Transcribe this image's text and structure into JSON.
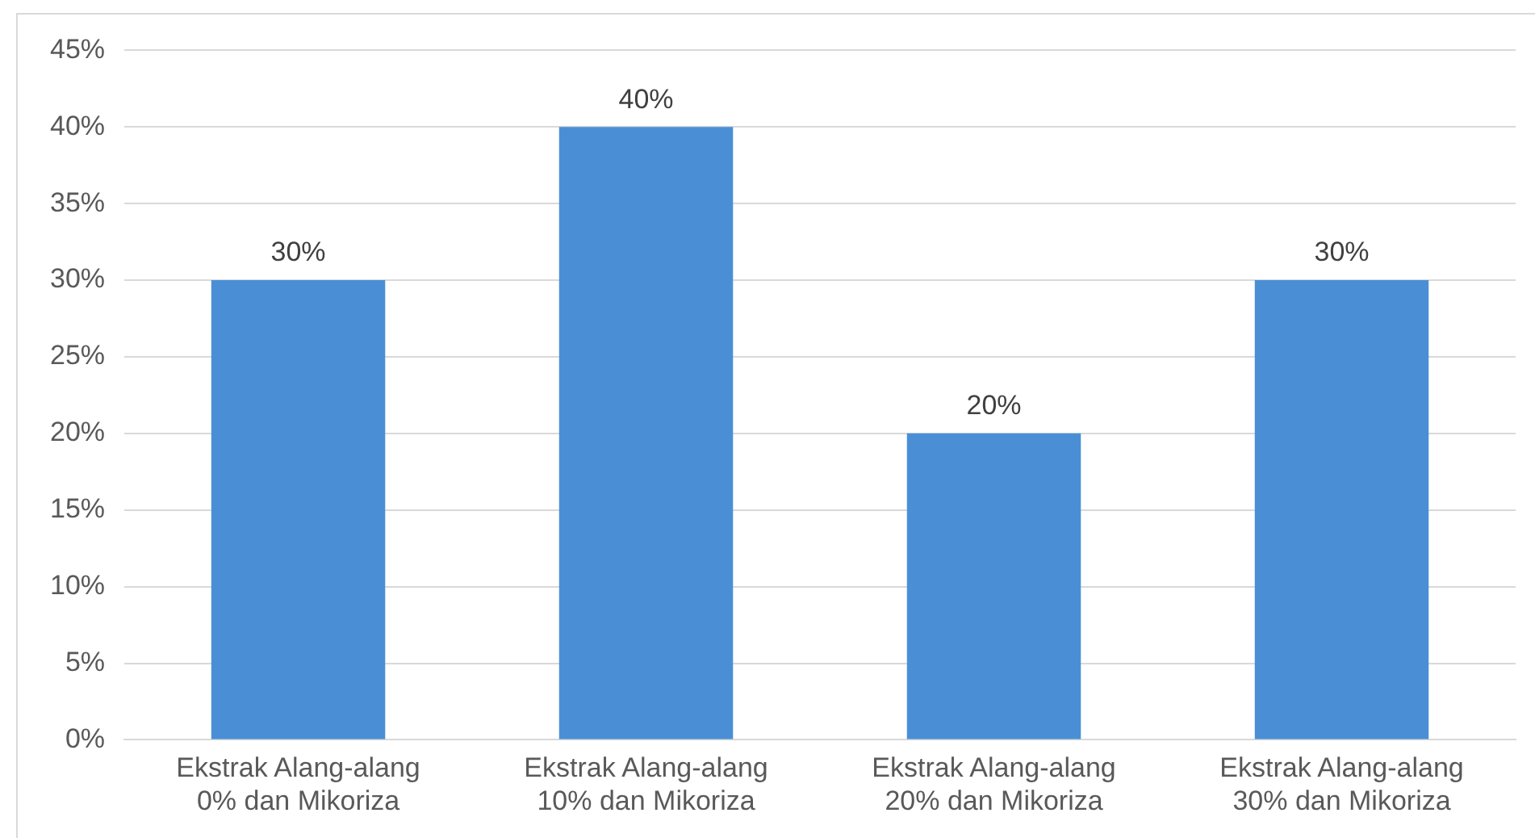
{
  "chart_data": {
    "type": "bar",
    "categories": [
      "Ekstrak Alang-alang 0% dan Mikoriza",
      "Ekstrak Alang-alang 10% dan Mikoriza",
      "Ekstrak Alang-alang 20% dan Mikoriza",
      "Ekstrak Alang-alang 30% dan Mikoriza"
    ],
    "values": [
      30,
      40,
      20,
      30
    ],
    "value_labels": [
      "30%",
      "40%",
      "20%",
      "30%"
    ],
    "color": "#4a8fd6",
    "ylim": [
      0,
      45
    ],
    "yticks": [
      {
        "value": 0,
        "label": "0%"
      },
      {
        "value": 5,
        "label": "5%"
      },
      {
        "value": 10,
        "label": "10%"
      },
      {
        "value": 15,
        "label": "15%"
      },
      {
        "value": 20,
        "label": "20%"
      },
      {
        "value": 25,
        "label": "25%"
      },
      {
        "value": 30,
        "label": "30%"
      },
      {
        "value": 35,
        "label": "35%"
      },
      {
        "value": 40,
        "label": "40%"
      },
      {
        "value": 45,
        "label": "45%"
      }
    ],
    "grid": "y"
  }
}
